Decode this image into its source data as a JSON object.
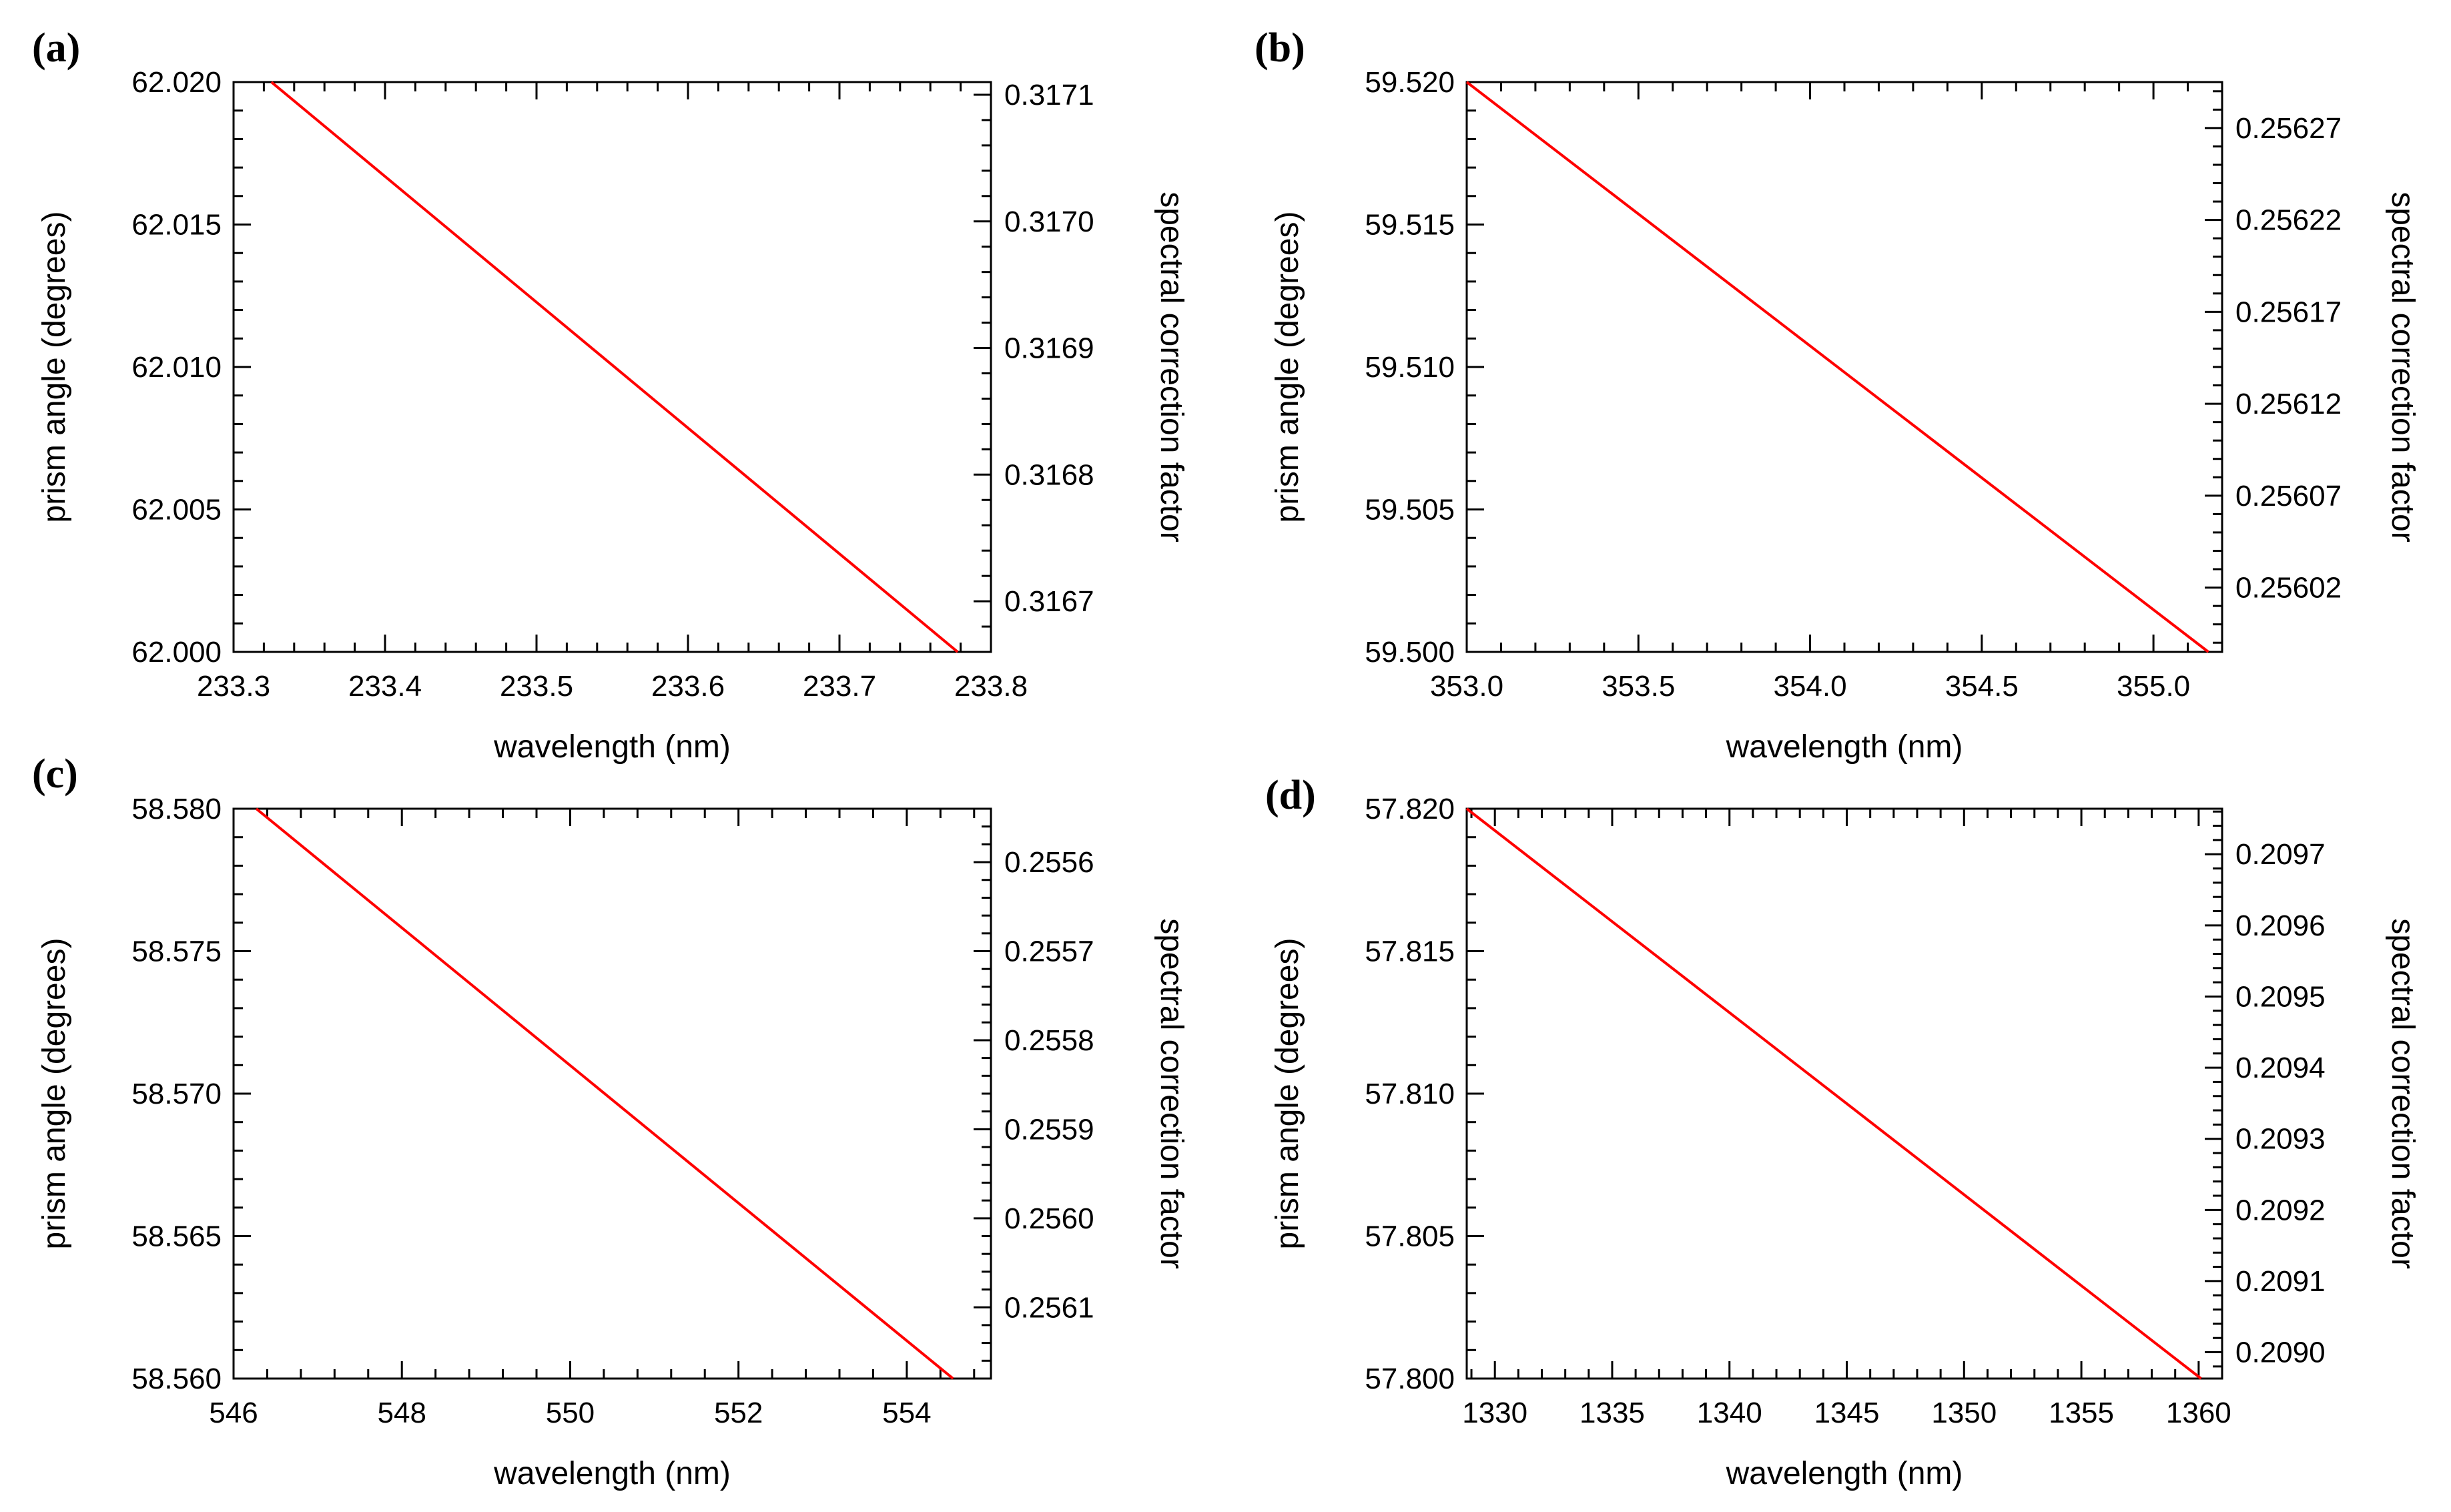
{
  "figure": {
    "background": "#ffffff",
    "axis_color": "#000000",
    "line_color": "#ff0000"
  },
  "chart_data": [
    {
      "type": "line",
      "panel_label": "(a)",
      "xlabel": "wavelength (nm)",
      "ylabel": "prism angle (degrees)",
      "y2label": "spectral correction factor",
      "xlim": [
        233.3,
        233.8
      ],
      "ylim": [
        62.0,
        62.02
      ],
      "y2lim": [
        0.31666,
        0.31711
      ],
      "xticks": [
        233.3,
        233.4,
        233.5,
        233.6,
        233.7,
        233.8
      ],
      "xtick_labels": [
        "233.3",
        "233.4",
        "233.5",
        "233.6",
        "233.7",
        "233.8"
      ],
      "yticks": [
        62.0,
        62.005,
        62.01,
        62.015,
        62.02
      ],
      "ytick_labels": [
        "62.000",
        "62.005",
        "62.010",
        "62.015",
        "62.020"
      ],
      "y2ticks": [
        0.3167,
        0.3168,
        0.3169,
        0.317,
        0.3171
      ],
      "y2tick_labels": [
        "0.3167",
        "0.3168",
        "0.3169",
        "0.3170",
        "0.3171"
      ],
      "x_minor": 4,
      "y_minor": 4,
      "y2_minor": 4,
      "y2_reversed": false,
      "series": [
        {
          "name": "prism angle",
          "x": [
            233.325,
            233.778
          ],
          "y": [
            62.02,
            62.0
          ]
        }
      ]
    },
    {
      "type": "line",
      "panel_label": "(b)",
      "xlabel": "wavelength (nm)",
      "ylabel": "prism angle (degrees)",
      "y2label": "spectral correction factor",
      "xlim": [
        353.0,
        355.2
      ],
      "ylim": [
        59.5,
        59.52
      ],
      "y2lim": [
        0.255985,
        0.256295
      ],
      "xticks": [
        353.0,
        353.5,
        354.0,
        354.5,
        355.0
      ],
      "xtick_labels": [
        "353.0",
        "353.5",
        "354.0",
        "354.5",
        "355.0"
      ],
      "yticks": [
        59.5,
        59.505,
        59.51,
        59.515,
        59.52
      ],
      "ytick_labels": [
        "59.500",
        "59.505",
        "59.510",
        "59.515",
        "59.520"
      ],
      "y2ticks": [
        0.25602,
        0.25607,
        0.25612,
        0.25617,
        0.25622,
        0.25627
      ],
      "y2tick_labels": [
        "0.25602",
        "0.25607",
        "0.25612",
        "0.25617",
        "0.25622",
        "0.25627"
      ],
      "x_minor": 4,
      "y_minor": 4,
      "y2_minor": 4,
      "y2_reversed": false,
      "series": [
        {
          "name": "prism angle",
          "x": [
            353.0,
            355.16
          ],
          "y": [
            59.52,
            59.5
          ]
        }
      ]
    },
    {
      "type": "line",
      "panel_label": "(c)",
      "xlabel": "wavelength (nm)",
      "ylabel": "prism angle (degrees)",
      "y2label": "spectral correction factor",
      "xlim": [
        546,
        555
      ],
      "ylim": [
        58.56,
        58.58
      ],
      "y2lim": [
        0.25554,
        0.25618
      ],
      "xticks": [
        546,
        548,
        550,
        552,
        554
      ],
      "xtick_labels": [
        "546",
        "548",
        "550",
        "552",
        "554"
      ],
      "yticks": [
        58.56,
        58.565,
        58.57,
        58.575,
        58.58
      ],
      "ytick_labels": [
        "58.560",
        "58.565",
        "58.570",
        "58.575",
        "58.580"
      ],
      "y2ticks": [
        0.2556,
        0.2557,
        0.2558,
        0.2559,
        0.256,
        0.2561
      ],
      "y2tick_labels": [
        "0.2556",
        "0.2557",
        "0.2558",
        "0.2559",
        "0.2560",
        "0.2561"
      ],
      "x_minor": 4,
      "y_minor": 4,
      "y2_minor": 4,
      "y2_reversed": true,
      "series": [
        {
          "name": "prism angle",
          "x": [
            546.27,
            554.55
          ],
          "y": [
            58.58,
            58.56
          ]
        }
      ]
    },
    {
      "type": "line",
      "panel_label": "(d)",
      "xlabel": "wavelength (nm)",
      "ylabel": "prism angle (degrees)",
      "y2label": "spectral correction factor",
      "xlim": [
        1328.8,
        1361.0
      ],
      "ylim": [
        57.8,
        57.82
      ],
      "y2lim": [
        0.208963,
        0.209764
      ],
      "xticks": [
        1330,
        1335,
        1340,
        1345,
        1350,
        1355,
        1360
      ],
      "xtick_labels": [
        "1330",
        "1335",
        "1340",
        "1345",
        "1350",
        "1355",
        "1360"
      ],
      "yticks": [
        57.8,
        57.805,
        57.81,
        57.815,
        57.82
      ],
      "ytick_labels": [
        "57.800",
        "57.805",
        "57.810",
        "57.815",
        "57.820"
      ],
      "y2ticks": [
        0.209,
        0.2091,
        0.2092,
        0.2093,
        0.2094,
        0.2095,
        0.2096,
        0.2097
      ],
      "y2tick_labels": [
        "0.2090",
        "0.2091",
        "0.2092",
        "0.2093",
        "0.2094",
        "0.2095",
        "0.2096",
        "0.2097"
      ],
      "x_minor": 4,
      "y_minor": 4,
      "y2_minor": 4,
      "y2_reversed": false,
      "series": [
        {
          "name": "prism angle",
          "x": [
            1328.8,
            1360.1
          ],
          "y": [
            57.82,
            57.8
          ]
        }
      ]
    }
  ]
}
